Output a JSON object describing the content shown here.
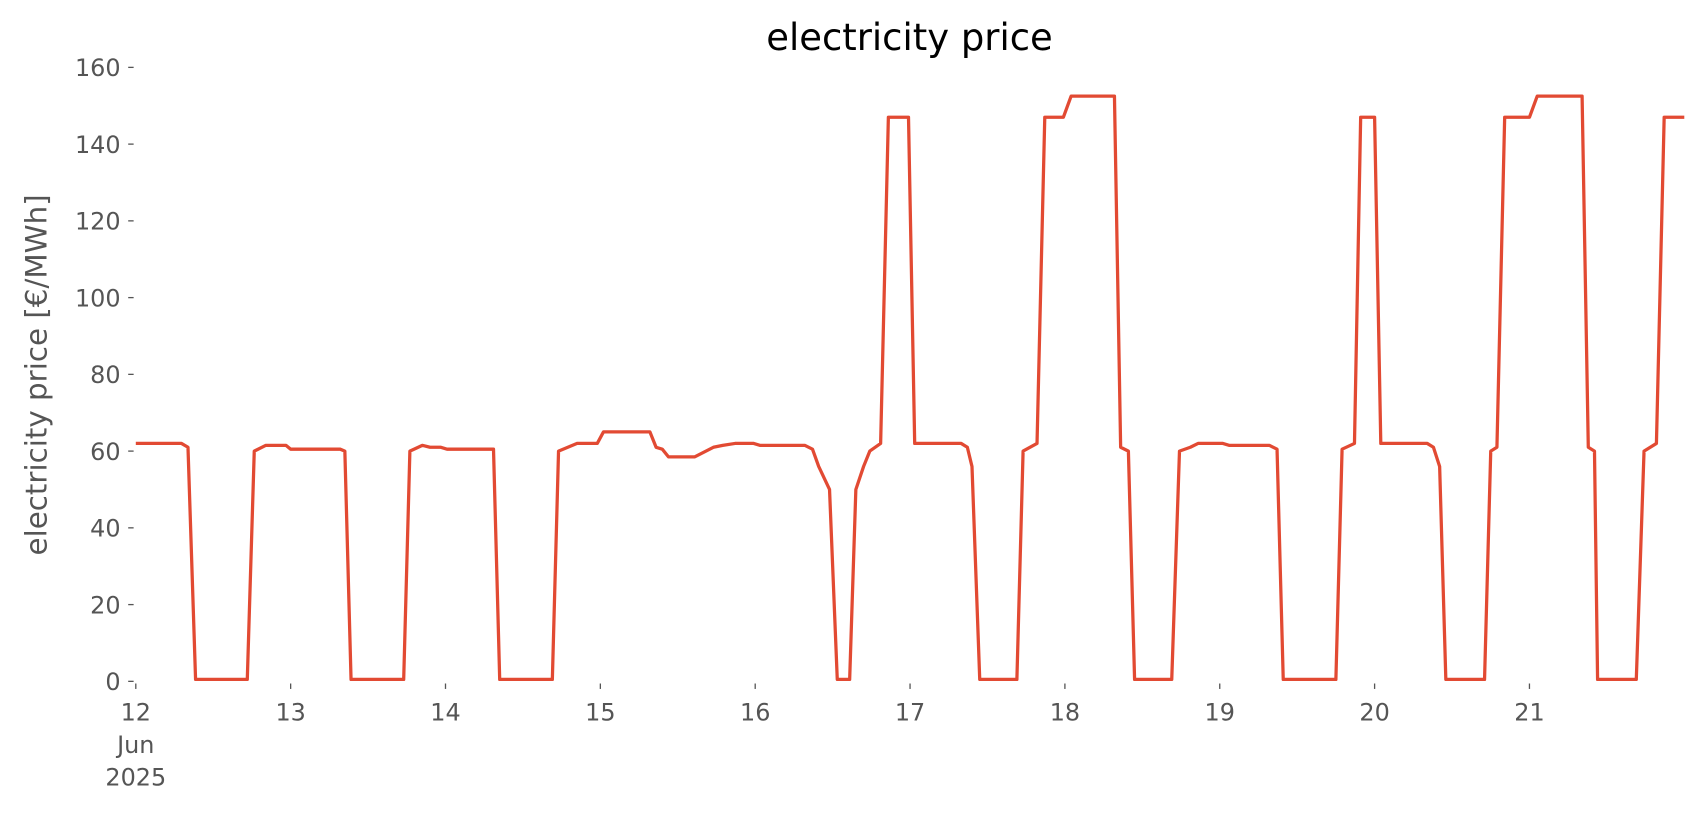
{
  "chart_data": {
    "type": "line",
    "title": "electricity price",
    "ylabel": "electricity price [€/MWh]",
    "x": [
      12.0,
      12.295,
      12.337,
      12.386,
      12.72,
      12.765,
      12.84,
      12.97,
      13.0,
      13.32,
      13.35,
      13.39,
      13.73,
      13.77,
      13.85,
      13.9,
      13.97,
      14.01,
      14.31,
      14.35,
      14.69,
      14.73,
      14.85,
      14.98,
      15.02,
      15.32,
      15.36,
      15.4,
      15.44,
      15.61,
      15.73,
      15.79,
      15.87,
      15.99,
      16.03,
      16.32,
      16.37,
      16.41,
      16.48,
      16.53,
      16.61,
      16.65,
      16.7,
      16.74,
      16.81,
      16.86,
      16.99,
      17.03,
      17.33,
      17.37,
      17.4,
      17.45,
      17.69,
      17.73,
      17.82,
      17.87,
      17.99,
      18.04,
      18.32,
      18.36,
      18.41,
      18.45,
      18.69,
      18.74,
      18.81,
      18.86,
      19.02,
      19.06,
      19.32,
      19.37,
      19.41,
      19.75,
      19.79,
      19.87,
      19.91,
      20.0,
      20.04,
      20.34,
      20.38,
      20.42,
      20.46,
      20.71,
      20.75,
      20.79,
      20.84,
      21.0,
      21.05,
      21.34,
      21.38,
      21.42,
      21.44,
      21.69,
      21.74,
      21.82,
      21.87,
      22.0
    ],
    "series": [
      {
        "name": "electricity price",
        "color": "#e24a33",
        "values": [
          62,
          62,
          61,
          0.5,
          0.5,
          60,
          61.5,
          61.5,
          60.5,
          60.5,
          60,
          0.5,
          0.5,
          60,
          61.5,
          61,
          61,
          60.5,
          60.5,
          0.5,
          0.5,
          60,
          62,
          62,
          65,
          65,
          61,
          60.5,
          58.5,
          58.5,
          61,
          61.5,
          62,
          62,
          61.5,
          61.5,
          60.5,
          56,
          50,
          0.5,
          0.5,
          50,
          56,
          60,
          62,
          147,
          147,
          62,
          62,
          61,
          56,
          0.5,
          0.5,
          60,
          62,
          147,
          147,
          152.5,
          152.5,
          61,
          60,
          0.5,
          0.5,
          60,
          61,
          62,
          62,
          61.5,
          61.5,
          60.5,
          0.5,
          0.5,
          60.5,
          62,
          147,
          147,
          62,
          62,
          61,
          56,
          0.5,
          0.5,
          60,
          61,
          147,
          147,
          152.5,
          152.5,
          61,
          60,
          0.5,
          0.5,
          60,
          62,
          147,
          147
        ]
      }
    ],
    "xlim": [
      12,
      22
    ],
    "ylim": [
      0,
      160
    ],
    "xticks": [
      {
        "value": 12,
        "label": "12\nJun\n2025"
      },
      13,
      14,
      15,
      16,
      17,
      18,
      19,
      20,
      21
    ],
    "yticks": [
      0,
      20,
      40,
      60,
      80,
      100,
      120,
      140,
      160
    ],
    "grid": false
  }
}
